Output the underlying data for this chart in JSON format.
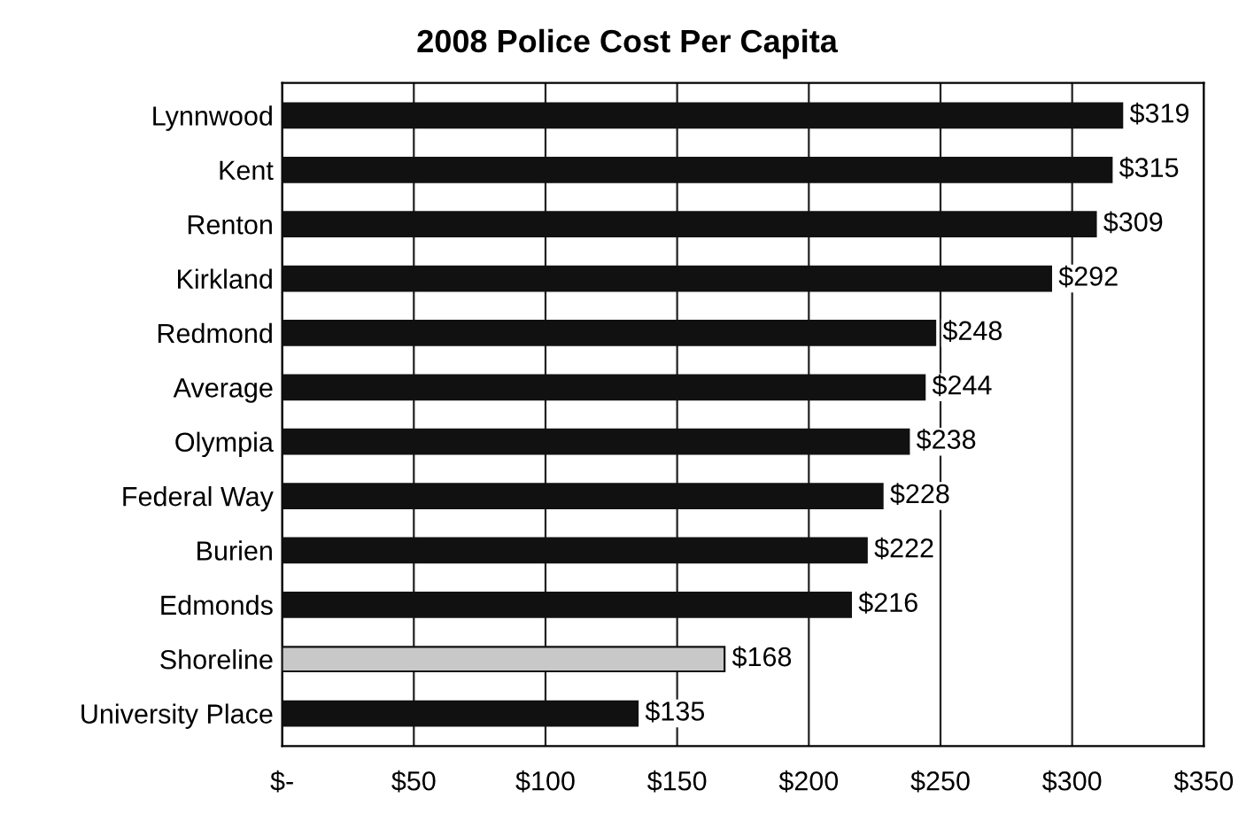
{
  "chart_data": {
    "type": "bar",
    "orientation": "horizontal",
    "title": "2008 Police Cost Per Capita",
    "categories": [
      "Lynnwood",
      "Kent",
      "Renton",
      "Kirkland",
      "Redmond",
      "Average",
      "Olympia",
      "Federal Way",
      "Burien",
      "Edmonds",
      "Shoreline",
      "University Place"
    ],
    "values": [
      319,
      315,
      309,
      292,
      248,
      244,
      238,
      228,
      222,
      216,
      168,
      135
    ],
    "value_labels": [
      "$319",
      "$315",
      "$309",
      "$292",
      "$248",
      "$244",
      "$238",
      "$228",
      "$222",
      "$216",
      "$168",
      "$135"
    ],
    "colors": [
      "#111111",
      "#111111",
      "#111111",
      "#111111",
      "#111111",
      "#111111",
      "#111111",
      "#111111",
      "#111111",
      "#111111",
      "#c8c8c8",
      "#111111"
    ],
    "xlim": [
      0,
      350
    ],
    "xticks": [
      {
        "value": 0,
        "label": "$-"
      },
      {
        "value": 50,
        "label": "$50"
      },
      {
        "value": 100,
        "label": "$100"
      },
      {
        "value": 150,
        "label": "$150"
      },
      {
        "value": 200,
        "label": "$200"
      },
      {
        "value": 250,
        "label": "$250"
      },
      {
        "value": 300,
        "label": "$300"
      },
      {
        "value": 350,
        "label": "$350"
      }
    ],
    "grid": "x",
    "legend": false
  }
}
